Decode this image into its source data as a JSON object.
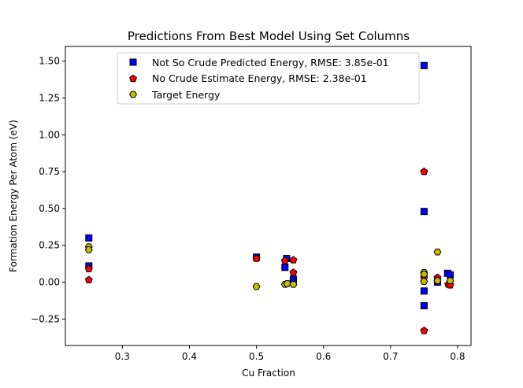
{
  "chart_data": {
    "type": "scatter",
    "title": "Predictions From Best Model Using Set Columns",
    "xlabel": "Cu Fraction",
    "ylabel": "Formation Energy Per Atom (eV)",
    "xlim": [
      0.215,
      0.82
    ],
    "ylim": [
      -0.43,
      1.6
    ],
    "xticks": [
      0.3,
      0.4,
      0.5,
      0.6,
      0.7,
      0.8
    ],
    "xtick_labels": [
      "0.3",
      "0.4",
      "0.5",
      "0.6",
      "0.7",
      "0.8"
    ],
    "yticks": [
      -0.25,
      0.0,
      0.25,
      0.5,
      0.75,
      1.0,
      1.25,
      1.5
    ],
    "ytick_labels": [
      "−0.25",
      "0.00",
      "0.25",
      "0.50",
      "0.75",
      "1.00",
      "1.25",
      "1.50"
    ],
    "grid": false,
    "legend_position": "top-center",
    "series": [
      {
        "name": "Not So Crude Predicted Energy, RMSE: 3.85e-01",
        "marker": "square",
        "color": "#0000ff",
        "points": [
          {
            "x": 0.25,
            "y": 0.3
          },
          {
            "x": 0.25,
            "y": 0.11
          },
          {
            "x": 0.5,
            "y": 0.17
          },
          {
            "x": 0.545,
            "y": 0.16
          },
          {
            "x": 0.5425,
            "y": 0.1
          },
          {
            "x": 0.555,
            "y": 0.02
          },
          {
            "x": 0.555,
            "y": 0.0
          },
          {
            "x": 0.75,
            "y": 1.47
          },
          {
            "x": 0.75,
            "y": 0.48
          },
          {
            "x": 0.75,
            "y": -0.06
          },
          {
            "x": 0.75,
            "y": -0.16
          },
          {
            "x": 0.77,
            "y": 0.0
          },
          {
            "x": 0.785,
            "y": 0.06
          },
          {
            "x": 0.789,
            "y": 0.05
          }
        ]
      },
      {
        "name": "No Crude Estimate Energy, RMSE: 2.38e-01",
        "marker": "pentagon",
        "color": "#ff0000",
        "points": [
          {
            "x": 0.25,
            "y": 0.09
          },
          {
            "x": 0.25,
            "y": 0.015
          },
          {
            "x": 0.5,
            "y": 0.16
          },
          {
            "x": 0.5425,
            "y": 0.145
          },
          {
            "x": 0.555,
            "y": 0.15
          },
          {
            "x": 0.555,
            "y": 0.065
          },
          {
            "x": 0.75,
            "y": 0.75
          },
          {
            "x": 0.75,
            "y": 0.03
          },
          {
            "x": 0.75,
            "y": -0.33
          },
          {
            "x": 0.77,
            "y": 0.03
          },
          {
            "x": 0.786,
            "y": -0.015
          },
          {
            "x": 0.789,
            "y": -0.02
          }
        ]
      },
      {
        "name": "Target Energy",
        "marker": "hexagon",
        "color": "#bfbf00",
        "points": [
          {
            "x": 0.25,
            "y": 0.24
          },
          {
            "x": 0.25,
            "y": 0.22
          },
          {
            "x": 0.5,
            "y": -0.03
          },
          {
            "x": 0.5425,
            "y": -0.015
          },
          {
            "x": 0.546,
            "y": -0.01
          },
          {
            "x": 0.555,
            "y": -0.015
          },
          {
            "x": 0.75,
            "y": 0.065
          },
          {
            "x": 0.75,
            "y": 0.055
          },
          {
            "x": 0.75,
            "y": 0.005
          },
          {
            "x": 0.77,
            "y": 0.205
          },
          {
            "x": 0.77,
            "y": 0.01
          },
          {
            "x": 0.789,
            "y": 0.01
          }
        ]
      }
    ]
  }
}
